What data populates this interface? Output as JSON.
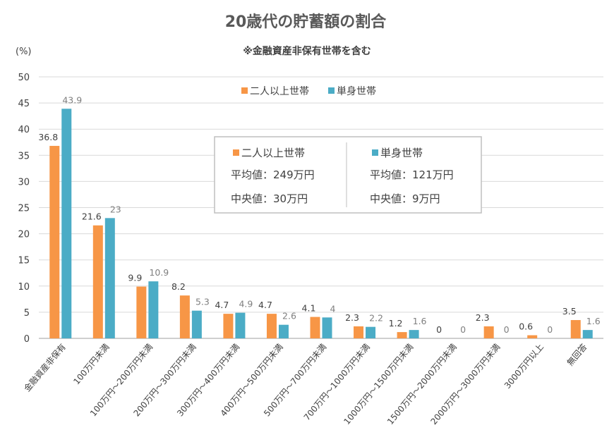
{
  "chart_data": {
    "type": "bar",
    "title": "20歳代の貯蓄額の割合",
    "subtitle": "※金融資産非保有世帯を含む",
    "ylabel": "(%)",
    "ylim": [
      0,
      50
    ],
    "yticks": [
      0,
      5,
      10,
      15,
      20,
      25,
      30,
      35,
      40,
      45,
      50
    ],
    "grid": true,
    "legend_position": "top-center",
    "categories": [
      "金融資産非保有",
      "100万円未満",
      "100万円～200万円未満",
      "200万円～300万円未満",
      "300万円～400万円未満",
      "400万円～500万円未満",
      "500万円～700万円未満",
      "700万円～1000万円未満",
      "1000万円～1500万円未満",
      "1500万円～2000万円未満",
      "2000万円～3000万円未満",
      "3000万円以上",
      "無回答"
    ],
    "series": [
      {
        "name": "二人以上世帯",
        "color": "#F79646",
        "values": [
          36.8,
          21.6,
          9.9,
          8.2,
          4.7,
          4.7,
          4.1,
          2.3,
          1.2,
          0,
          2.3,
          0.6,
          3.5
        ]
      },
      {
        "name": "単身世帯",
        "color": "#4BACC6",
        "values": [
          43.9,
          23,
          10.9,
          5.3,
          4.9,
          2.6,
          4,
          2.2,
          1.6,
          0,
          0,
          0,
          1.6
        ]
      }
    ],
    "summary_box": {
      "groups": [
        {
          "name": "二人以上世帯",
          "mean": "平均値：249万円",
          "median": "中央値：30万円"
        },
        {
          "name": "単身世帯",
          "mean": "平均値：121万円",
          "median": "中央値：9万円"
        }
      ]
    }
  }
}
